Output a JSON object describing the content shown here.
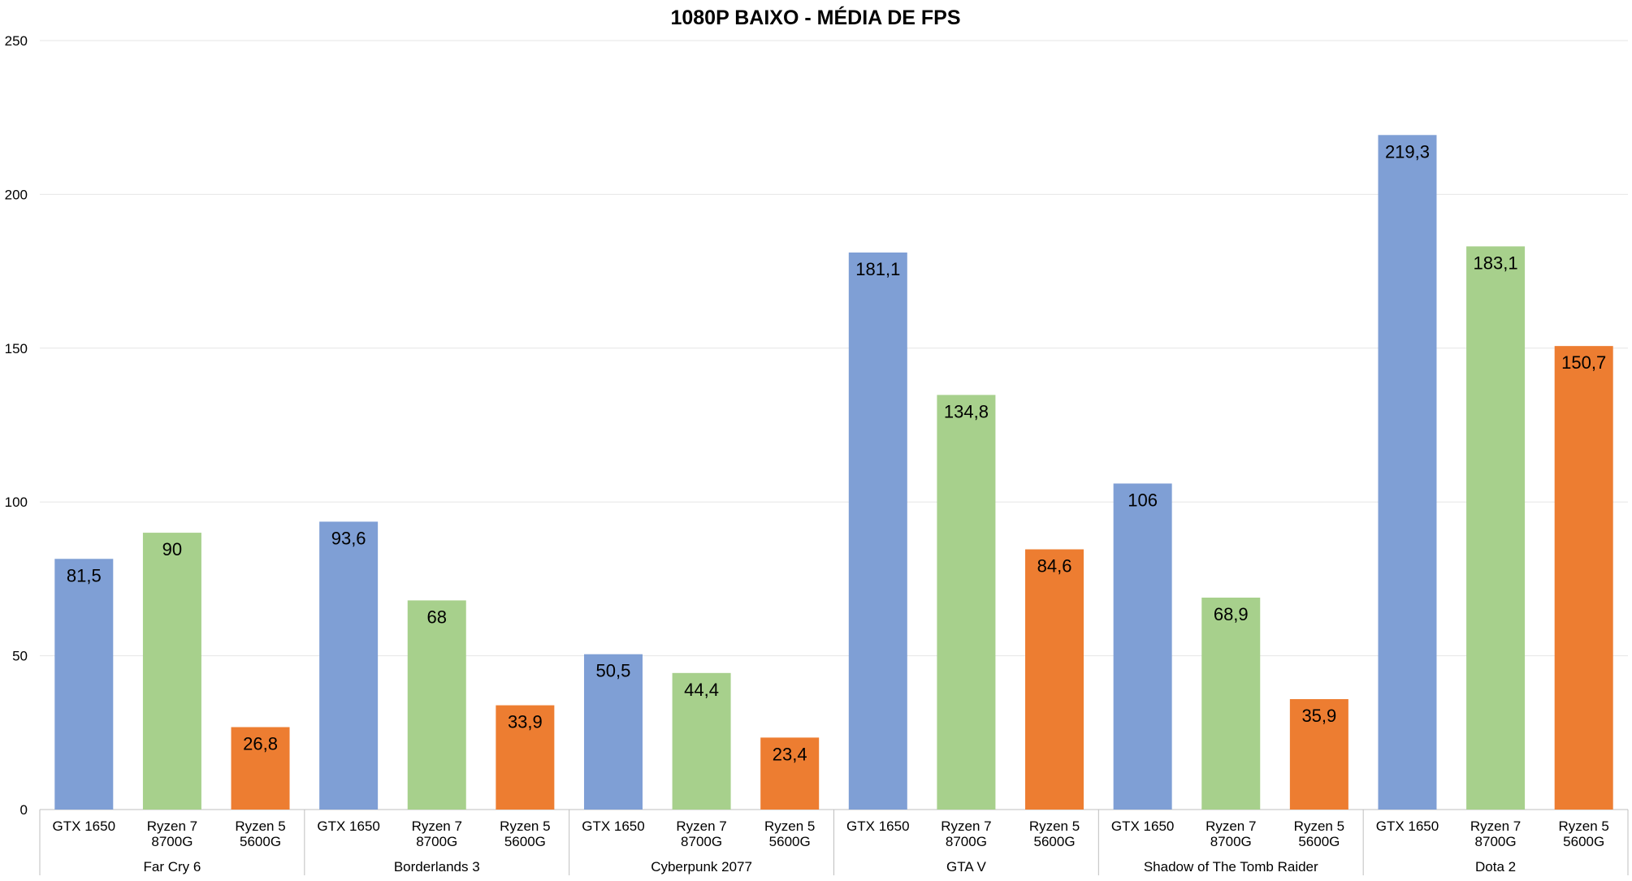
{
  "chart_data": {
    "type": "bar",
    "title": "1080P BAIXO - MÉDIA DE FPS",
    "xlabel": "",
    "ylabel": "",
    "ylim": [
      0,
      250
    ],
    "yticks": [
      "0",
      "50",
      "100",
      "150",
      "200",
      "250"
    ],
    "grid": true,
    "legend": "none",
    "groups": [
      {
        "name": "Far Cry 6",
        "bars": [
          {
            "label": [
              "GTX 1650"
            ],
            "value": 81.5,
            "value_label": "81,5",
            "color": "#7f9fd5"
          },
          {
            "label": [
              "Ryzen 7",
              "8700G"
            ],
            "value": 90,
            "value_label": "90",
            "color": "#a7d08c"
          },
          {
            "label": [
              "Ryzen 5",
              "5600G"
            ],
            "value": 26.8,
            "value_label": "26,8",
            "color": "#ed7d31"
          }
        ]
      },
      {
        "name": "Borderlands 3",
        "bars": [
          {
            "label": [
              "GTX 1650"
            ],
            "value": 93.6,
            "value_label": "93,6",
            "color": "#7f9fd5"
          },
          {
            "label": [
              "Ryzen 7",
              "8700G"
            ],
            "value": 68,
            "value_label": "68",
            "color": "#a7d08c"
          },
          {
            "label": [
              "Ryzen 5",
              "5600G"
            ],
            "value": 33.9,
            "value_label": "33,9",
            "color": "#ed7d31"
          }
        ]
      },
      {
        "name": "Cyberpunk 2077",
        "bars": [
          {
            "label": [
              "GTX 1650"
            ],
            "value": 50.5,
            "value_label": "50,5",
            "color": "#7f9fd5"
          },
          {
            "label": [
              "Ryzen 7",
              "8700G"
            ],
            "value": 44.4,
            "value_label": "44,4",
            "color": "#a7d08c"
          },
          {
            "label": [
              "Ryzen 5",
              "5600G"
            ],
            "value": 23.4,
            "value_label": "23,4",
            "color": "#ed7d31"
          }
        ]
      },
      {
        "name": "GTA V",
        "bars": [
          {
            "label": [
              "GTX 1650"
            ],
            "value": 181.1,
            "value_label": "181,1",
            "color": "#7f9fd5"
          },
          {
            "label": [
              "Ryzen 7",
              "8700G"
            ],
            "value": 134.8,
            "value_label": "134,8",
            "color": "#a7d08c"
          },
          {
            "label": [
              "Ryzen 5",
              "5600G"
            ],
            "value": 84.6,
            "value_label": "84,6",
            "color": "#ed7d31"
          }
        ]
      },
      {
        "name": "Shadow of The Tomb Raider",
        "bars": [
          {
            "label": [
              "GTX 1650"
            ],
            "value": 106,
            "value_label": "106",
            "color": "#7f9fd5"
          },
          {
            "label": [
              "Ryzen 7",
              "8700G"
            ],
            "value": 68.9,
            "value_label": "68,9",
            "color": "#a7d08c"
          },
          {
            "label": [
              "Ryzen 5",
              "5600G"
            ],
            "value": 35.9,
            "value_label": "35,9",
            "color": "#ed7d31"
          }
        ]
      },
      {
        "name": "Dota 2",
        "bars": [
          {
            "label": [
              "GTX 1650"
            ],
            "value": 219.3,
            "value_label": "219,3",
            "color": "#7f9fd5"
          },
          {
            "label": [
              "Ryzen 7",
              "8700G"
            ],
            "value": 183.1,
            "value_label": "183,1",
            "color": "#a7d08c"
          },
          {
            "label": [
              "Ryzen 5",
              "5600G"
            ],
            "value": 150.7,
            "value_label": "150,7",
            "color": "#ed7d31"
          }
        ]
      }
    ]
  }
}
